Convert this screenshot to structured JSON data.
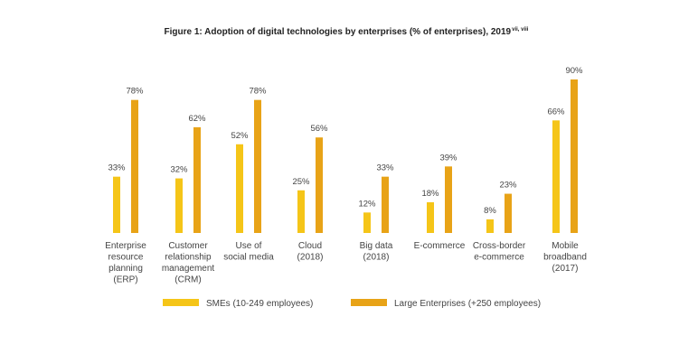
{
  "chart_data": {
    "type": "bar",
    "title": "Figure 1: Adoption of digital technologies by enterprises (% of enterprises), 2019",
    "title_superscript": "vii, viii",
    "categories": [
      [
        "Enterprise",
        "resource",
        "planning",
        "(ERP)"
      ],
      [
        "Customer",
        "relationship",
        "management",
        "(CRM)"
      ],
      [
        "Use of",
        "social media"
      ],
      [
        "Cloud",
        "(2018)"
      ],
      [
        "Big data",
        "(2018)"
      ],
      [
        "E-commerce"
      ],
      [
        "Cross-border",
        "e-commerce"
      ],
      [
        "Mobile",
        "broadband",
        "(2017)"
      ]
    ],
    "series": [
      {
        "name": "SMEs (10-249 employees)",
        "color": "#f5c518",
        "values": [
          33,
          32,
          52,
          25,
          12,
          18,
          8,
          66
        ],
        "labels": [
          "33%",
          "32%",
          "52%",
          "25%",
          "12%",
          "18%",
          "8%",
          "66%"
        ]
      },
      {
        "name": "Large Enterprises (+250 employees)",
        "color": "#e8a317",
        "values": [
          78,
          62,
          78,
          56,
          33,
          39,
          23,
          90
        ],
        "labels": [
          "78%",
          "62%",
          "78%",
          "56%",
          "33%",
          "39%",
          "23%",
          "90%"
        ]
      }
    ],
    "ylim": [
      0,
      100
    ],
    "grid": false,
    "legend_position": "bottom"
  }
}
